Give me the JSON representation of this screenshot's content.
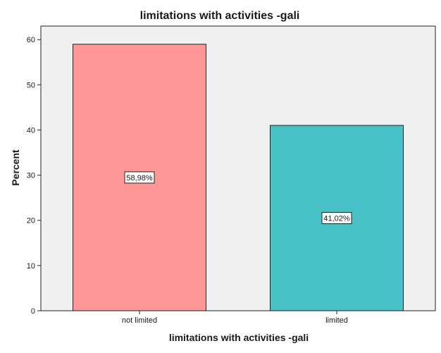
{
  "chart_data": {
    "type": "bar",
    "title": "limitations with activities -gali",
    "xlabel": "limitations with activities -gali",
    "ylabel": "Percent",
    "categories": [
      "not limited",
      "limited"
    ],
    "values": [
      58.98,
      41.02
    ],
    "data_labels": [
      "58,98%",
      "41,02%"
    ],
    "colors": [
      "#ff9797",
      "#48c1c6"
    ],
    "plot_background": "#f0f0f0",
    "ylim": [
      0,
      63
    ],
    "yticks": [
      0,
      10,
      20,
      30,
      40,
      50,
      60
    ],
    "grid": false,
    "legend": "none"
  }
}
